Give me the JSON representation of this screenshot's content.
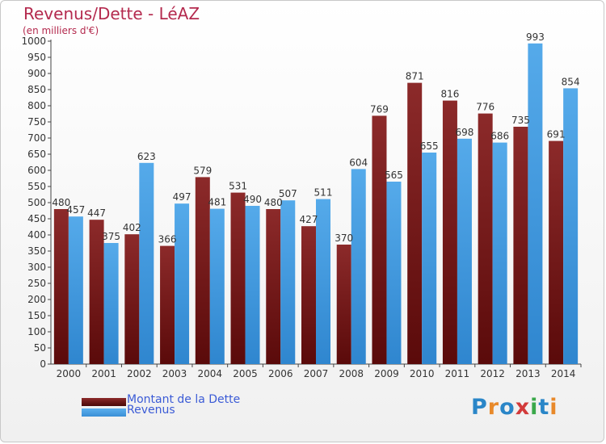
{
  "header": {
    "title": "Revenus/Dette - LéAZ",
    "subtitle": "(en milliers d'€)"
  },
  "colors": {
    "dette": "#7a1f1f",
    "revenus": "#4a9fe2",
    "title": "#b42a4e",
    "legend_text": "#3b5bd6"
  },
  "logo": {
    "letters": [
      "P",
      "r",
      "o",
      "x",
      "i",
      "t",
      "i"
    ],
    "colors": [
      "#2a86c8",
      "#e8892a",
      "#2a86c8",
      "#d23a3a",
      "#3aa84a",
      "#2a86c8",
      "#e8892a"
    ]
  },
  "chart_data": {
    "type": "bar",
    "categories": [
      "2000",
      "2001",
      "2002",
      "2003",
      "2004",
      "2005",
      "2006",
      "2007",
      "2008",
      "2009",
      "2010",
      "2011",
      "2012",
      "2013",
      "2014"
    ],
    "series": [
      {
        "name": "Montant de la Dette",
        "values": [
          480,
          447,
          402,
          366,
          579,
          531,
          480,
          427,
          370,
          769,
          871,
          816,
          776,
          735,
          691
        ]
      },
      {
        "name": "Revenus",
        "values": [
          457,
          375,
          623,
          497,
          481,
          490,
          507,
          511,
          604,
          565,
          655,
          698,
          686,
          993,
          854
        ]
      }
    ],
    "ylim": [
      0,
      1000
    ],
    "ytick_step": 50,
    "grid": false,
    "legend_position": "bottom-left"
  }
}
